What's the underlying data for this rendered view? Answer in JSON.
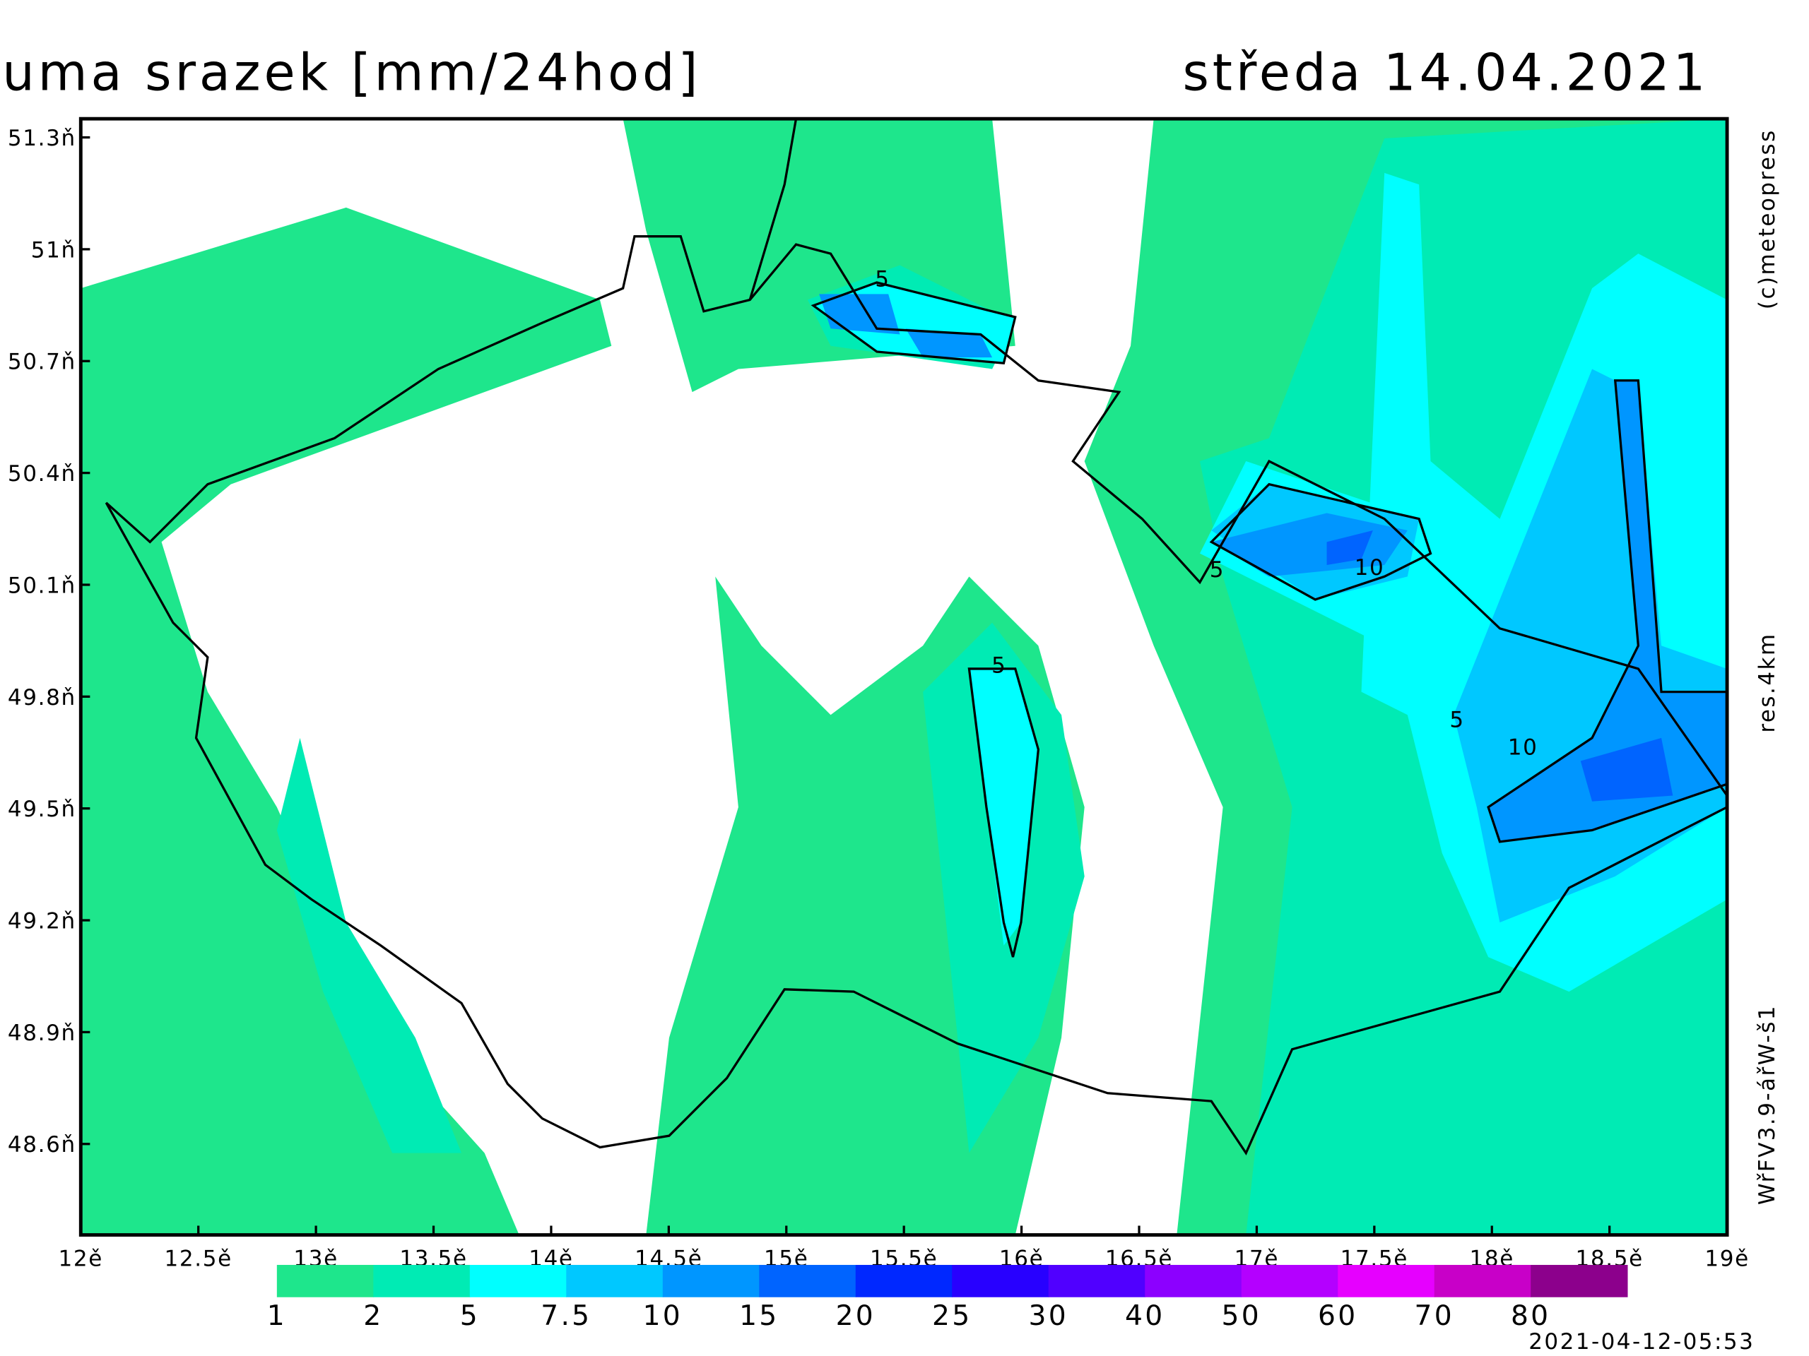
{
  "chart_data": {
    "type": "map",
    "title": "uma srazek [mm/24hod]",
    "date": "středa 14.04.2021",
    "copyright": "(c)meteopress",
    "resolution": "res.4km",
    "model": "WřFV3.9-ářW-š1",
    "timestamp": "2021-04-12-05:53",
    "xlim": [
      12,
      19
    ],
    "ylim": [
      48.356,
      51.35
    ],
    "xticks": [
      {
        "value": 12,
        "label": "12ě"
      },
      {
        "value": 12.5,
        "label": "12.5ě"
      },
      {
        "value": 13,
        "label": "13ě"
      },
      {
        "value": 13.5,
        "label": "13.5ě"
      },
      {
        "value": 14,
        "label": "14ě"
      },
      {
        "value": 14.5,
        "label": "14.5ě"
      },
      {
        "value": 15,
        "label": "15ě"
      },
      {
        "value": 15.5,
        "label": "15.5ě"
      },
      {
        "value": 16,
        "label": "16ě"
      },
      {
        "value": 16.5,
        "label": "16.5ě"
      },
      {
        "value": 17,
        "label": "17ě"
      },
      {
        "value": 17.5,
        "label": "17.5ě"
      },
      {
        "value": 18,
        "label": "18ě"
      },
      {
        "value": 18.5,
        "label": "18.5ě"
      },
      {
        "value": 19,
        "label": "19ě"
      }
    ],
    "yticks": [
      {
        "value": 51.3,
        "label": "51.3ň"
      },
      {
        "value": 51,
        "label": "51ň"
      },
      {
        "value": 50.7,
        "label": "50.7ň"
      },
      {
        "value": 50.4,
        "label": "50.4ň"
      },
      {
        "value": 50.1,
        "label": "50.1ň"
      },
      {
        "value": 49.8,
        "label": "49.8ň"
      },
      {
        "value": 49.5,
        "label": "49.5ň"
      },
      {
        "value": 49.2,
        "label": "49.2ň"
      },
      {
        "value": 48.9,
        "label": "48.9ň"
      },
      {
        "value": 48.6,
        "label": "48.6ň"
      }
    ],
    "legend": {
      "levels": [
        1,
        2,
        5,
        7.5,
        10,
        15,
        20,
        25,
        30,
        40,
        50,
        60,
        70,
        80
      ],
      "colors": [
        "#1ee68c",
        "#00ebb4",
        "#00ffff",
        "#00c8ff",
        "#0096ff",
        "#0064ff",
        "#0028ff",
        "#2800ff",
        "#5000ff",
        "#8c00ff",
        "#b400ff",
        "#e600ff",
        "#c800c8",
        "#8c008c"
      ]
    },
    "contour_labels": [
      5,
      5,
      10,
      5,
      5,
      10
    ]
  }
}
